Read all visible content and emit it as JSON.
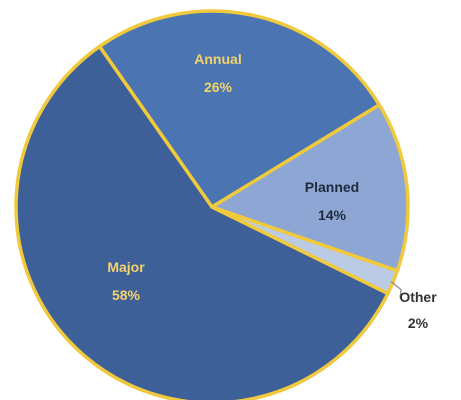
{
  "chart_data": {
    "type": "pie",
    "slices": [
      {
        "label": "Annual",
        "value": 26,
        "pct_text": "26%",
        "color": "#4A74B2",
        "label_color": "#F3D36A"
      },
      {
        "label": "Planned",
        "value": 14,
        "pct_text": "14%",
        "color": "#8DA6D3",
        "label_color": "#1F2B3D"
      },
      {
        "label": "Other",
        "value": 2,
        "pct_text": "2%",
        "color": "#BBCBE4",
        "label_color": "#333333"
      },
      {
        "label": "Major",
        "value": 58,
        "pct_text": "58%",
        "color": "#3E6099",
        "label_color": "#F3D36A"
      }
    ],
    "border_color": "#F0C93C",
    "legend": "none"
  }
}
